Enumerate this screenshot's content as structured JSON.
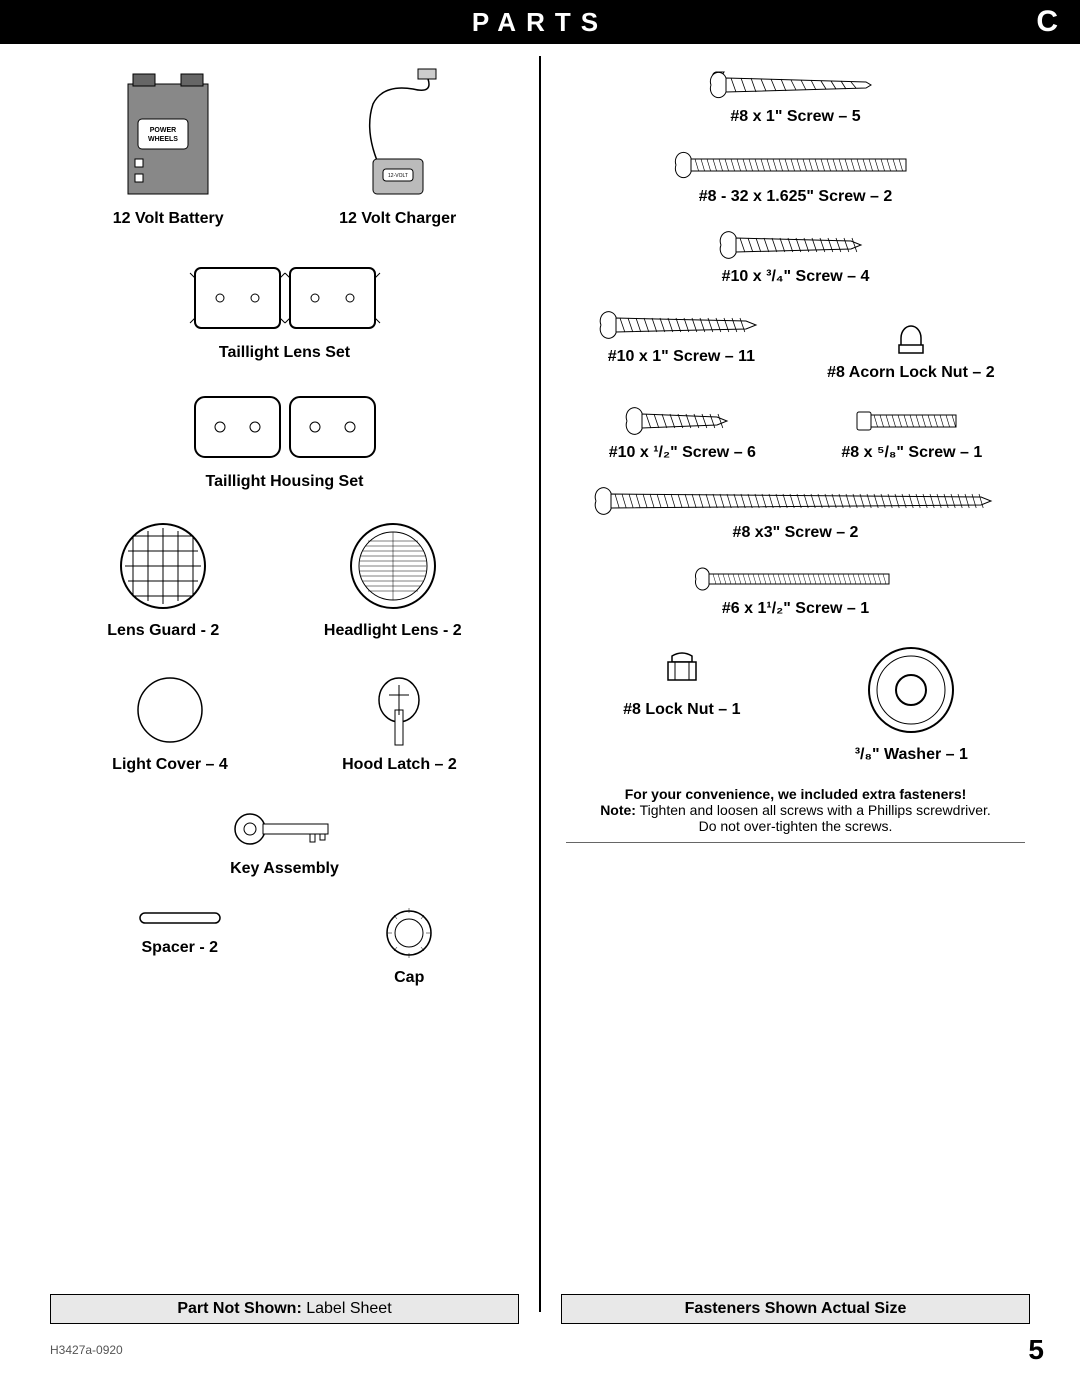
{
  "header": {
    "title": "PARTS",
    "corner": "C"
  },
  "left": {
    "row1": {
      "a": "12 Volt Battery",
      "b": "12 Volt Charger"
    },
    "row2": "Taillight Lens Set",
    "row3": "Taillight Housing Set",
    "row4": {
      "a": "Lens Guard - 2",
      "b": "Headlight Lens - 2"
    },
    "row5": {
      "a": "Light Cover – 4",
      "b": "Hood Latch – 2"
    },
    "row6": "Key Assembly",
    "row7": {
      "a": "Spacer - 2",
      "b": "Cap"
    },
    "footer_bold": "Part Not Shown:",
    "footer_rest": " Label Sheet"
  },
  "right": {
    "f1": "#8 x 1\" Screw – 5",
    "f2": "#8 - 32 x 1.625\" Screw – 2",
    "f3": "#10 x ³/₄\" Screw – 4",
    "f4a": "#10 x 1\" Screw – 11",
    "f4b": "#8 Acorn Lock Nut – 2",
    "f5a": "#10 x ¹/₂\" Screw – 6",
    "f5b": "#8 x ⁵/₈\" Screw – 1",
    "f6": "#8 x3\" Screw – 2",
    "f7": "#6 x 1¹/₂\" Screw – 1",
    "f8a": "#8 Lock Nut – 1",
    "f8b": "³/₈\" Washer – 1",
    "note_bold1": "For your convenience, we included extra fasteners!",
    "note_bold2": "Note:",
    "note_text": " Tighten and loosen all screws with a Phillips screwdriver.",
    "note_text2": "Do not over-tighten the screws.",
    "footer": "Fasteners Shown Actual Size"
  },
  "footer": {
    "doc": "H3427a-0920",
    "page": "5"
  },
  "svg": {
    "screw_long": 170,
    "screw_med": 230,
    "screw_short": 140,
    "screw_tiny": 100,
    "screw_xlong": 380,
    "screw_thin": 180
  }
}
